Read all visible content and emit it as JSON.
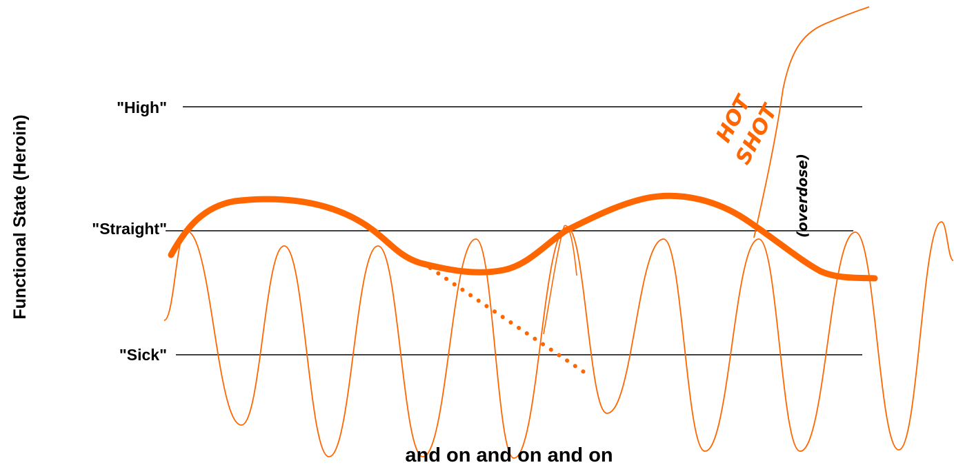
{
  "diagram": {
    "y_axis_label": "Functional State (Heroin)",
    "levels": [
      {
        "id": "high",
        "label": "\"High\""
      },
      {
        "id": "straight",
        "label": "\"Straight\""
      },
      {
        "id": "sick",
        "label": "\"Sick\""
      }
    ],
    "bottom_caption": "and on and on and on",
    "hot_shot_line1": "HOT",
    "hot_shot_line2": "SHOT",
    "overdose_label": "(overdose)"
  },
  "colors": {
    "curve": "#ff6600",
    "thick_curve": "#ff6600",
    "level_line": "#000000",
    "text": "#000000"
  }
}
